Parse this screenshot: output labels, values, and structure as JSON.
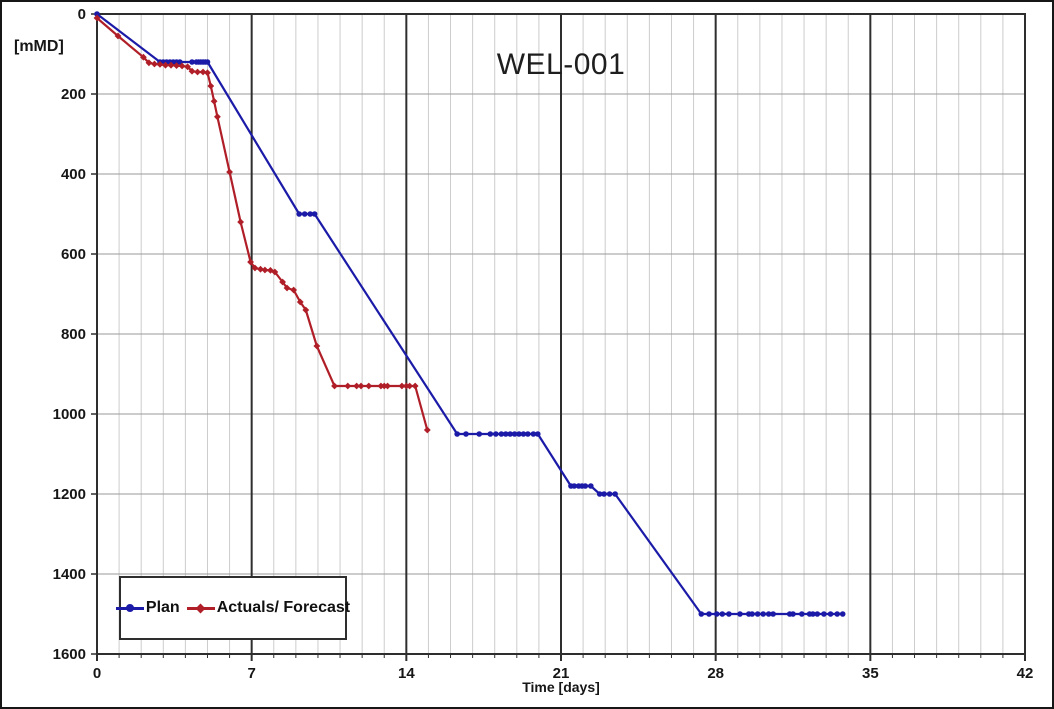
{
  "figure": {
    "title": "WEL-001",
    "y_unit_label": "[mMD]",
    "x_axis_title": "Time [days]"
  },
  "legend": {
    "items": [
      {
        "label": "Plan",
        "color": "#1b1ba8",
        "marker": "circle"
      },
      {
        "label": "Actuals/ Forecast",
        "color": "#b01e28",
        "marker": "diamond"
      }
    ]
  },
  "style": {
    "background": "#ffffff",
    "text": "#161616",
    "border": "#2e2e2e",
    "grid_minor_vertical": "#cccccc",
    "grid_major_vertical": "#2e2e2e",
    "grid_horizontal": "#9a9a9a",
    "plan_color": "#1b1ba8",
    "actuals_color": "#b01e28"
  },
  "chart_data": {
    "type": "line",
    "title": "WEL-001",
    "xlabel": "Time [days]",
    "ylabel": "[mMD]",
    "x_range": [
      0,
      42
    ],
    "y_range": [
      0,
      1600
    ],
    "y_axis_inverted": true,
    "grid": "on",
    "legend_position": "bottom-left",
    "x_major_ticks": [
      0,
      7,
      14,
      21,
      28,
      35,
      42
    ],
    "x_minor_tick_step": 1,
    "y_ticks": [
      0,
      200,
      400,
      600,
      800,
      1000,
      1200,
      1400,
      1600
    ],
    "series": [
      {
        "name": "Plan",
        "color": "#1b1ba8",
        "marker": "circle",
        "points": [
          [
            0,
            0
          ],
          [
            2.85,
            120
          ],
          [
            3.0,
            120
          ],
          [
            3.15,
            120
          ],
          [
            3.3,
            120
          ],
          [
            3.45,
            120
          ],
          [
            3.6,
            120
          ],
          [
            3.75,
            120
          ],
          [
            4.3,
            120
          ],
          [
            4.5,
            120
          ],
          [
            4.6,
            120
          ],
          [
            4.7,
            120
          ],
          [
            4.8,
            120
          ],
          [
            4.9,
            120
          ],
          [
            5.0,
            120
          ],
          [
            9.15,
            500
          ],
          [
            9.4,
            500
          ],
          [
            9.65,
            500
          ],
          [
            9.85,
            500
          ],
          [
            16.3,
            1050
          ],
          [
            16.7,
            1050
          ],
          [
            17.3,
            1050
          ],
          [
            17.8,
            1050
          ],
          [
            18.05,
            1050
          ],
          [
            18.3,
            1050
          ],
          [
            18.5,
            1050
          ],
          [
            18.7,
            1050
          ],
          [
            18.9,
            1050
          ],
          [
            19.1,
            1050
          ],
          [
            19.3,
            1050
          ],
          [
            19.5,
            1050
          ],
          [
            19.75,
            1050
          ],
          [
            19.95,
            1050
          ],
          [
            21.45,
            1180
          ],
          [
            21.6,
            1180
          ],
          [
            21.8,
            1180
          ],
          [
            21.95,
            1180
          ],
          [
            22.1,
            1180
          ],
          [
            22.35,
            1180
          ],
          [
            22.75,
            1200
          ],
          [
            22.95,
            1200
          ],
          [
            23.2,
            1200
          ],
          [
            23.45,
            1200
          ],
          [
            27.35,
            1500
          ],
          [
            27.7,
            1500
          ],
          [
            28.05,
            1500
          ],
          [
            28.3,
            1500
          ],
          [
            28.6,
            1500
          ],
          [
            29.1,
            1500
          ],
          [
            29.5,
            1500
          ],
          [
            29.65,
            1500
          ],
          [
            29.9,
            1500
          ],
          [
            30.15,
            1500
          ],
          [
            30.4,
            1500
          ],
          [
            30.6,
            1500
          ],
          [
            31.35,
            1500
          ],
          [
            31.5,
            1500
          ],
          [
            31.9,
            1500
          ],
          [
            32.25,
            1500
          ],
          [
            32.4,
            1500
          ],
          [
            32.6,
            1500
          ],
          [
            32.9,
            1500
          ],
          [
            33.2,
            1500
          ],
          [
            33.5,
            1500
          ],
          [
            33.75,
            1500
          ]
        ]
      },
      {
        "name": "Actuals/ Forecast",
        "color": "#b01e28",
        "marker": "diamond",
        "points": [
          [
            0,
            10
          ],
          [
            0.95,
            55
          ],
          [
            2.1,
            108
          ],
          [
            2.35,
            122
          ],
          [
            2.6,
            125
          ],
          [
            2.85,
            126
          ],
          [
            3.1,
            128
          ],
          [
            3.35,
            128
          ],
          [
            3.6,
            129
          ],
          [
            3.85,
            130
          ],
          [
            4.1,
            132
          ],
          [
            4.3,
            143
          ],
          [
            4.55,
            145
          ],
          [
            4.8,
            145
          ],
          [
            5.0,
            147
          ],
          [
            5.15,
            180
          ],
          [
            5.3,
            218
          ],
          [
            5.45,
            257
          ],
          [
            6.0,
            395
          ],
          [
            6.5,
            520
          ],
          [
            6.95,
            620
          ],
          [
            7.15,
            635
          ],
          [
            7.4,
            638
          ],
          [
            7.6,
            640
          ],
          [
            7.85,
            641
          ],
          [
            8.05,
            645
          ],
          [
            8.4,
            670
          ],
          [
            8.6,
            685
          ],
          [
            8.9,
            690
          ],
          [
            9.2,
            720
          ],
          [
            9.45,
            740
          ],
          [
            9.95,
            830
          ],
          [
            10.75,
            930
          ],
          [
            11.35,
            930
          ],
          [
            11.75,
            930
          ],
          [
            11.95,
            930
          ],
          [
            12.3,
            930
          ],
          [
            12.85,
            930
          ],
          [
            13.0,
            930
          ],
          [
            13.15,
            930
          ],
          [
            13.8,
            930
          ],
          [
            14.0,
            930
          ],
          [
            14.15,
            930
          ],
          [
            14.4,
            930
          ],
          [
            14.95,
            1040
          ]
        ]
      }
    ]
  }
}
